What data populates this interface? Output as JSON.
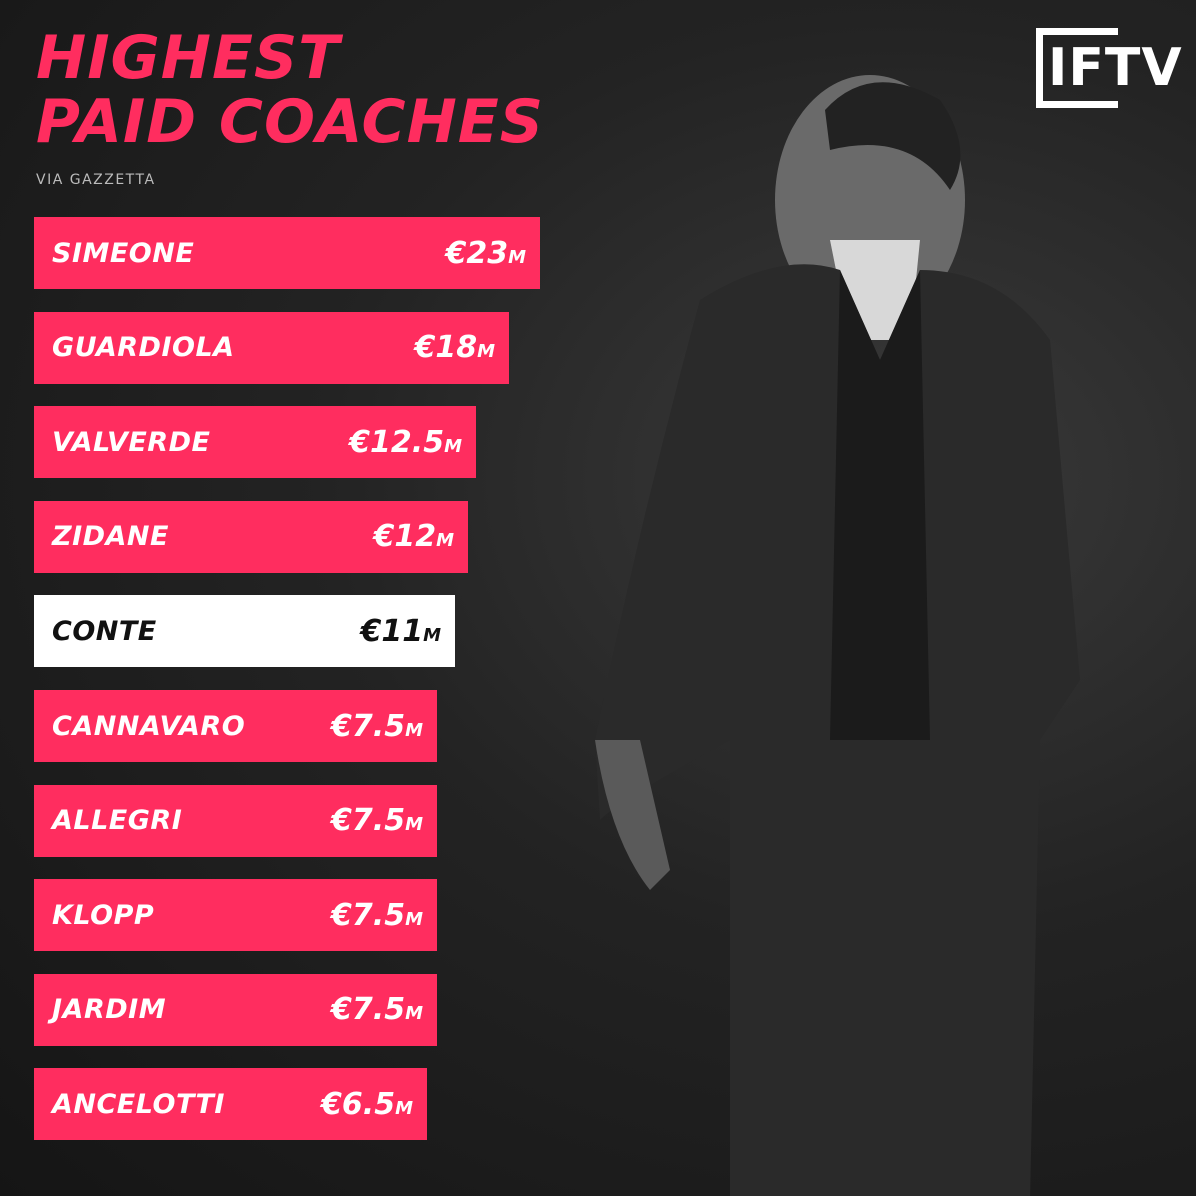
{
  "header": {
    "title": [
      "HIGHEST",
      "PAID COACHES"
    ],
    "source": "VIA GAZZETTA"
  },
  "logo": "IFTV",
  "rows": [
    {
      "name": "SIMEONE",
      "amount": "€23",
      "unit": "M"
    },
    {
      "name": "GUARDIOLA",
      "amount": "€18",
      "unit": "M"
    },
    {
      "name": "VALVERDE",
      "amount": "€12.5",
      "unit": "M"
    },
    {
      "name": "ZIDANE",
      "amount": "€12",
      "unit": "M"
    },
    {
      "name": "CONTE",
      "amount": "€11",
      "unit": "M"
    },
    {
      "name": "CANNAVARO",
      "amount": "€7.5",
      "unit": "M"
    },
    {
      "name": "ALLEGRI",
      "amount": "€7.5",
      "unit": "M"
    },
    {
      "name": "KLOPP",
      "amount": "€7.5",
      "unit": "M"
    },
    {
      "name": "JARDIM",
      "amount": "€7.5",
      "unit": "M"
    },
    {
      "name": "ANCELOTTI",
      "amount": "€6.5",
      "unit": "M"
    }
  ]
}
